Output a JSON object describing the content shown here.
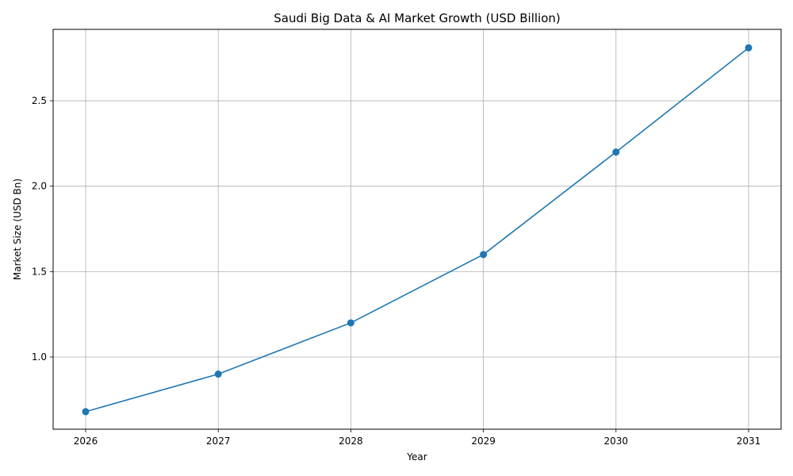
{
  "chart_data": {
    "type": "line",
    "title": "Saudi Big Data & AI Market Growth (USD Billion)",
    "xlabel": "Year",
    "ylabel": "Market Size (USD Bn)",
    "categories": [
      "2026",
      "2027",
      "2028",
      "2029",
      "2030",
      "2031"
    ],
    "series": [
      {
        "name": "Market Size",
        "values": [
          0.68,
          0.9,
          1.2,
          1.6,
          2.2,
          2.81
        ],
        "color": "#1f77b4",
        "marker": "circle"
      }
    ],
    "yticks": [
      "1.0",
      "1.5",
      "2.0",
      "2.5"
    ],
    "ylim": [
      0.57,
      2.92
    ],
    "grid": true,
    "legend": false
  }
}
